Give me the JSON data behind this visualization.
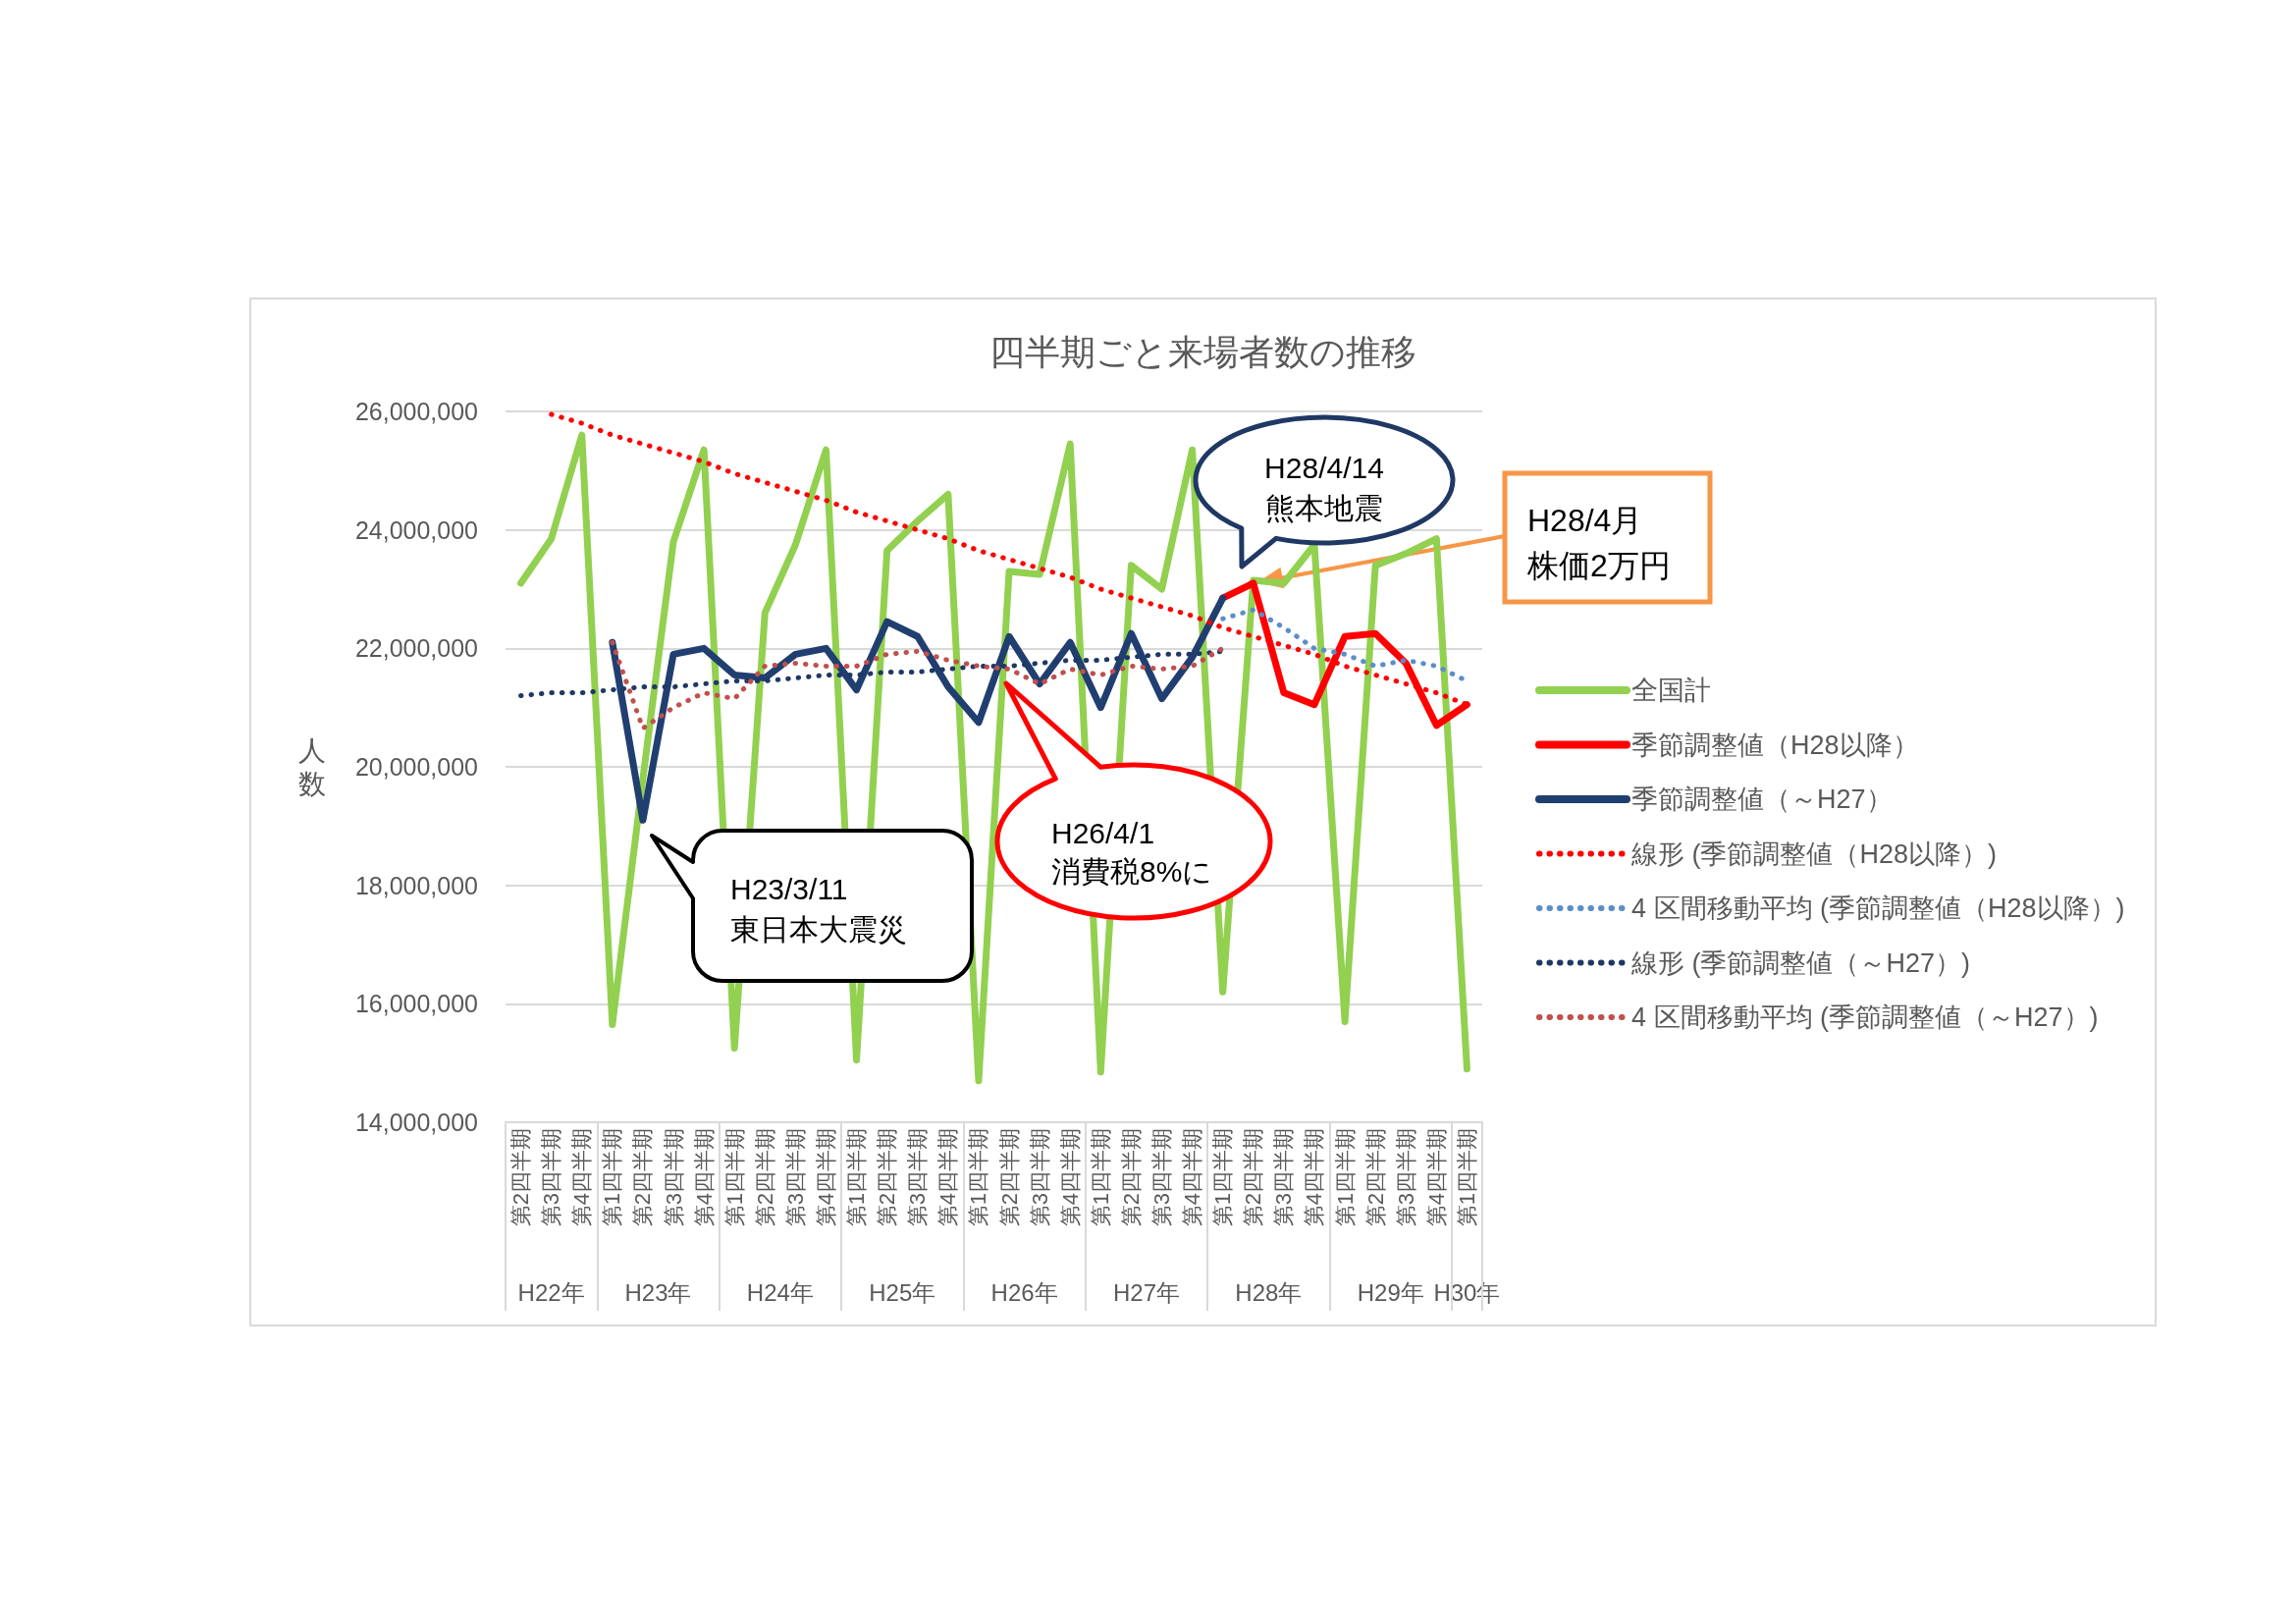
{
  "chart_data": {
    "type": "line",
    "title": "四半期ごと来場者数の推移",
    "ylabel": "人数",
    "categories": [
      "第2四半期",
      "第3四半期",
      "第4四半期",
      "第1四半期",
      "第2四半期",
      "第3四半期",
      "第4四半期",
      "第1四半期",
      "第2四半期",
      "第3四半期",
      "第4四半期",
      "第1四半期",
      "第2四半期",
      "第3四半期",
      "第4四半期",
      "第1四半期",
      "第2四半期",
      "第3四半期",
      "第4四半期",
      "第1四半期",
      "第2四半期",
      "第3四半期",
      "第4四半期",
      "第1四半期",
      "第2四半期",
      "第3四半期",
      "第4四半期",
      "第1四半期",
      "第2四半期",
      "第3四半期",
      "第4四半期",
      "第1四半期"
    ],
    "series": [
      {
        "name": "全国計",
        "color": "#92d050",
        "line_style": "solid",
        "values": [
          23100000,
          23850000,
          25600000,
          15650000,
          19800000,
          23800000,
          25350000,
          15250000,
          22600000,
          23750000,
          25350000,
          15050000,
          23650000,
          24150000,
          24600000,
          14700000,
          23300000,
          23250000,
          25450000,
          14850000,
          23400000,
          23000000,
          25350000,
          16200000,
          23150000,
          23100000,
          23750000,
          15700000,
          23400000,
          23600000,
          23850000,
          14900000
        ]
      },
      {
        "name": "季節調整値（H28以降）",
        "color": "#ff0000",
        "line_style": "solid",
        "values": [
          null,
          null,
          null,
          null,
          null,
          null,
          null,
          null,
          null,
          null,
          null,
          null,
          null,
          null,
          null,
          null,
          null,
          null,
          null,
          null,
          null,
          null,
          null,
          22850000,
          23100000,
          21250000,
          21050000,
          22200000,
          22250000,
          21750000,
          20700000,
          21050000
        ]
      },
      {
        "name": "季節調整値（～H27）",
        "color": "#203f70",
        "line_style": "solid",
        "values": [
          null,
          null,
          null,
          22100000,
          19100000,
          21900000,
          22000000,
          21550000,
          21500000,
          21900000,
          22000000,
          21300000,
          22450000,
          22200000,
          21350000,
          20750000,
          22200000,
          21400000,
          22100000,
          21000000,
          22250000,
          21150000,
          21850000,
          22850000,
          null,
          null,
          null,
          null,
          null,
          null,
          null,
          null
        ]
      },
      {
        "name": "線形 (季節調整値（H28以降）)",
        "color": "#ff0000",
        "line_style": "dotted",
        "values": [
          null,
          25950000,
          25800000,
          25600000,
          25450000,
          25300000,
          25150000,
          24950000,
          24800000,
          24650000,
          24500000,
          24300000,
          24150000,
          24000000,
          23850000,
          23650000,
          23500000,
          23350000,
          23200000,
          23000000,
          22850000,
          22700000,
          22550000,
          22350000,
          22200000,
          22050000,
          21900000,
          21700000,
          21550000,
          21400000,
          21250000,
          21050000
        ]
      },
      {
        "name": "4 区間移動平均 (季節調整値（H28以降）)",
        "color": "#5b8ec8",
        "line_style": "dotted",
        "values": [
          null,
          null,
          null,
          null,
          null,
          null,
          null,
          null,
          null,
          null,
          null,
          null,
          null,
          null,
          null,
          null,
          null,
          null,
          null,
          null,
          null,
          null,
          null,
          22500000,
          22650000,
          22350000,
          22000000,
          21900000,
          21700000,
          21800000,
          21700000,
          21450000
        ]
      },
      {
        "name": "線形 (季節調整値（～H27）)",
        "color": "#1f3864",
        "line_style": "dotted",
        "values": [
          21200000,
          21250000,
          21250000,
          21300000,
          21350000,
          21350000,
          21400000,
          21450000,
          21450000,
          21500000,
          21550000,
          21550000,
          21600000,
          21600000,
          21650000,
          21700000,
          21700000,
          21750000,
          21800000,
          21800000,
          21850000,
          21900000,
          21900000,
          21950000,
          null,
          null,
          null,
          null,
          null,
          null,
          null,
          null
        ]
      },
      {
        "name": "4 区間移動平均 (季節調整値（～H27）)",
        "color": "#c0504d",
        "line_style": "dotted",
        "values": [
          null,
          null,
          null,
          22100000,
          20650000,
          21000000,
          21250000,
          21150000,
          21700000,
          21750000,
          21700000,
          21700000,
          21900000,
          21950000,
          21800000,
          21700000,
          21650000,
          21400000,
          21650000,
          21550000,
          21700000,
          21650000,
          21700000,
          22000000,
          null,
          null,
          null,
          null,
          null,
          null,
          null,
          null
        ]
      }
    ],
    "ylim": [
      14000000,
      26000000
    ],
    "yticks": [
      {
        "value": 14000000,
        "label": "14,000,000"
      },
      {
        "value": 16000000,
        "label": "16,000,000"
      },
      {
        "value": 18000000,
        "label": "18,000,000"
      },
      {
        "value": 20000000,
        "label": "20,000,000"
      },
      {
        "value": 22000000,
        "label": "22,000,000"
      },
      {
        "value": 24000000,
        "label": "24,000,000"
      },
      {
        "value": 26000000,
        "label": "26,000,000"
      }
    ],
    "grid": "y",
    "legend": "right",
    "annotations": [
      "H22年",
      "H23年",
      "H24年",
      "H25年",
      "H26年",
      "H27年",
      "H28年",
      "H29年",
      "H30年",
      "H23/3/11\n東日本大震災",
      "H26/4/1\n消費税8%に",
      "H28/4/14\n熊本地震",
      "H28/4月株価2万円"
    ]
  }
}
